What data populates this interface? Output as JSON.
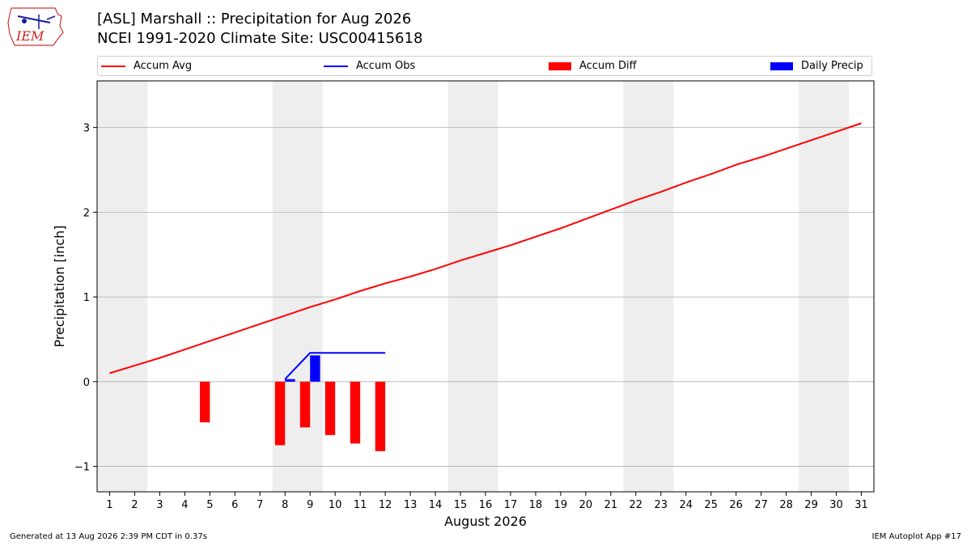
{
  "header": {
    "title": "[ASL] Marshall :: Precipitation for Aug 2026",
    "subtitle": "NCEI 1991-2020 Climate Site: USC00415618",
    "logo_text": "IEM"
  },
  "legend": {
    "accum_avg": "Accum Avg",
    "accum_obs": "Accum Obs",
    "accum_diff": "Accum Diff",
    "daily_precip": "Daily Precip"
  },
  "footer": {
    "left": "Generated at 13 Aug 2026 2:39 PM CDT in 0.37s",
    "right": "IEM Autoplot App #17"
  },
  "colors": {
    "avg": "#ff0000",
    "obs": "#0000ff",
    "diff": "#ff0000",
    "daily": "#0000ff",
    "weekend": "#eeeeee",
    "grid": "#b0b0b0"
  },
  "chart_data": {
    "type": "line",
    "xlabel": "August 2026",
    "ylabel": "Precipitation [inch]",
    "xlim": [
      0.5,
      31.5
    ],
    "ylim": [
      -1.3,
      3.55
    ],
    "yticks": [
      -1,
      0,
      1,
      2,
      3
    ],
    "ytick_labels": [
      "−1",
      "0",
      "1",
      "2",
      "3"
    ],
    "xticks": [
      1,
      2,
      3,
      4,
      5,
      6,
      7,
      8,
      9,
      10,
      11,
      12,
      13,
      14,
      15,
      16,
      17,
      18,
      19,
      20,
      21,
      22,
      23,
      24,
      25,
      26,
      27,
      28,
      29,
      30,
      31
    ],
    "grid": "horizontal",
    "legend_position": "top",
    "weekend_spans": [
      [
        0.5,
        2.5
      ],
      [
        7.5,
        9.5
      ],
      [
        14.5,
        16.5
      ],
      [
        21.5,
        23.5
      ],
      [
        28.5,
        30.5
      ]
    ],
    "series": [
      {
        "name": "Accum Avg",
        "kind": "line",
        "x": [
          1,
          2,
          3,
          4,
          5,
          6,
          7,
          8,
          9,
          10,
          11,
          12,
          13,
          14,
          15,
          16,
          17,
          18,
          19,
          20,
          21,
          22,
          23,
          24,
          25,
          26,
          27,
          28,
          29,
          30,
          31
        ],
        "values": [
          0.1,
          0.19,
          0.28,
          0.38,
          0.48,
          0.58,
          0.68,
          0.78,
          0.88,
          0.97,
          1.07,
          1.16,
          1.24,
          1.33,
          1.43,
          1.52,
          1.61,
          1.71,
          1.81,
          1.92,
          2.03,
          2.14,
          2.24,
          2.35,
          2.45,
          2.56,
          2.65,
          2.75,
          2.85,
          2.95,
          3.05
        ]
      },
      {
        "name": "Accum Obs",
        "kind": "line",
        "x": [
          8,
          9,
          10,
          11,
          12
        ],
        "values": [
          0.03,
          0.34,
          0.34,
          0.34,
          0.34
        ]
      },
      {
        "name": "Accum Diff",
        "kind": "bar",
        "x": [
          5,
          8,
          9,
          10,
          11,
          12
        ],
        "values": [
          -0.48,
          -0.75,
          -0.54,
          -0.63,
          -0.73,
          -0.82
        ]
      },
      {
        "name": "Daily Precip",
        "kind": "bar",
        "x": [
          8,
          9
        ],
        "values": [
          0.03,
          0.31
        ]
      }
    ]
  }
}
